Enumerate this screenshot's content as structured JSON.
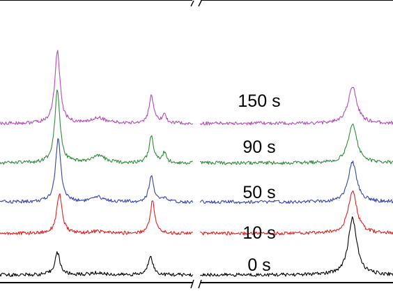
{
  "chart_data": {
    "type": "line",
    "title": "",
    "xlabel": "",
    "ylabel": "",
    "axis_break": true,
    "grid": false,
    "legend": "labels placed beside each trace",
    "x_segments": [
      [
        0.0,
        0.49
      ],
      [
        0.51,
        1.0
      ]
    ],
    "series": [
      {
        "name": "0 s",
        "color": "#000000",
        "baseline": 0.0,
        "peaks": [
          {
            "x": 0.146,
            "height": 0.09,
            "width": 0.008
          },
          {
            "x": 0.248,
            "height": 0.008,
            "width": 0.02
          },
          {
            "x": 0.383,
            "height": 0.08,
            "width": 0.007
          },
          {
            "x": 0.897,
            "height": 0.23,
            "width": 0.013
          }
        ]
      },
      {
        "name": "10 s",
        "color": "#e02020",
        "baseline": 0.168,
        "peaks": [
          {
            "x": 0.151,
            "height": 0.16,
            "width": 0.008
          },
          {
            "x": 0.248,
            "height": 0.008,
            "width": 0.02
          },
          {
            "x": 0.388,
            "height": 0.132,
            "width": 0.007
          },
          {
            "x": 0.897,
            "height": 0.172,
            "width": 0.013
          }
        ]
      },
      {
        "name": "50 s",
        "color": "#3344aa",
        "baseline": 0.295,
        "peaks": [
          {
            "x": 0.148,
            "height": 0.255,
            "width": 0.008
          },
          {
            "x": 0.251,
            "height": 0.018,
            "width": 0.02
          },
          {
            "x": 0.385,
            "height": 0.108,
            "width": 0.007
          },
          {
            "x": 0.418,
            "height": 0.016,
            "width": 0.006
          },
          {
            "x": 0.897,
            "height": 0.162,
            "width": 0.013
          }
        ]
      },
      {
        "name": "90 s",
        "color": "#2e8b3a",
        "baseline": 0.453,
        "peaks": [
          {
            "x": 0.146,
            "height": 0.295,
            "width": 0.008
          },
          {
            "x": 0.251,
            "height": 0.028,
            "width": 0.02
          },
          {
            "x": 0.385,
            "height": 0.108,
            "width": 0.007
          },
          {
            "x": 0.418,
            "height": 0.04,
            "width": 0.006
          },
          {
            "x": 0.897,
            "height": 0.162,
            "width": 0.013
          }
        ]
      },
      {
        "name": "150 s",
        "color": "#b34ab8",
        "baseline": 0.613,
        "peaks": [
          {
            "x": 0.146,
            "height": 0.295,
            "width": 0.008
          },
          {
            "x": 0.251,
            "height": 0.023,
            "width": 0.02
          },
          {
            "x": 0.385,
            "height": 0.11,
            "width": 0.007
          },
          {
            "x": 0.418,
            "height": 0.035,
            "width": 0.006
          },
          {
            "x": 0.897,
            "height": 0.15,
            "width": 0.013
          }
        ]
      }
    ],
    "series_labels": [
      "150 s",
      "90 s",
      "50 s",
      "10 s",
      "0 s"
    ]
  }
}
